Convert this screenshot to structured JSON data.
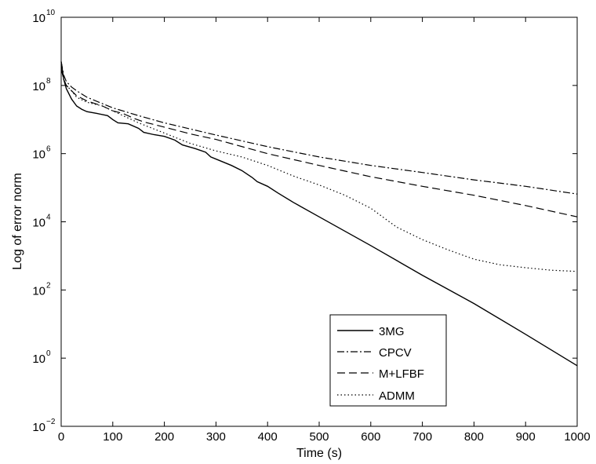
{
  "chart_data": {
    "type": "line",
    "title": "",
    "xlabel": "Time (s)",
    "ylabel": "Log of error norm",
    "xlim": [
      0,
      1000
    ],
    "ylim": [
      0.01,
      10000000000
    ],
    "yscale": "log",
    "grid": false,
    "legend_position": "bottom-right",
    "xticks": [
      "0",
      "100",
      "200",
      "300",
      "400",
      "500",
      "600",
      "700",
      "800",
      "900",
      "1000"
    ],
    "yticks": [
      {
        "base": "10",
        "exp": "−2",
        "value": 0.01
      },
      {
        "base": "10",
        "exp": "0",
        "value": 1
      },
      {
        "base": "10",
        "exp": "2",
        "value": 100
      },
      {
        "base": "10",
        "exp": "4",
        "value": 10000
      },
      {
        "base": "10",
        "exp": "6",
        "value": 1000000
      },
      {
        "base": "10",
        "exp": "8",
        "value": 100000000
      },
      {
        "base": "10",
        "exp": "10",
        "value": 10000000000
      }
    ],
    "series": [
      {
        "name": "3MG",
        "style": "solid",
        "points": [
          [
            0,
            500000000
          ],
          [
            5,
            150000000
          ],
          [
            10,
            80000000
          ],
          [
            20,
            40000000
          ],
          [
            30,
            25000000
          ],
          [
            40,
            20000000
          ],
          [
            50,
            17000000
          ],
          [
            70,
            15000000
          ],
          [
            90,
            13000000
          ],
          [
            100,
            10000000
          ],
          [
            110,
            8000000
          ],
          [
            130,
            7500000
          ],
          [
            150,
            5500000
          ],
          [
            160,
            4200000
          ],
          [
            180,
            3600000
          ],
          [
            200,
            3200000
          ],
          [
            220,
            2500000
          ],
          [
            235,
            1800000
          ],
          [
            260,
            1400000
          ],
          [
            280,
            1100000
          ],
          [
            290,
            800000
          ],
          [
            310,
            600000
          ],
          [
            330,
            450000
          ],
          [
            350,
            320000
          ],
          [
            370,
            200000
          ],
          [
            380,
            150000
          ],
          [
            400,
            110000
          ],
          [
            420,
            70000
          ],
          [
            450,
            37000
          ],
          [
            500,
            14000
          ],
          [
            600,
            2000
          ],
          [
            700,
            270
          ],
          [
            800,
            40
          ],
          [
            900,
            5
          ],
          [
            1000,
            0.6
          ]
        ]
      },
      {
        "name": "CPCV",
        "style": "dashdot",
        "points": [
          [
            0,
            500000000
          ],
          [
            5,
            200000000
          ],
          [
            10,
            130000000
          ],
          [
            20,
            90000000
          ],
          [
            30,
            70000000
          ],
          [
            50,
            45000000
          ],
          [
            100,
            22000000
          ],
          [
            150,
            13000000
          ],
          [
            200,
            8000000
          ],
          [
            300,
            3500000
          ],
          [
            400,
            1600000
          ],
          [
            500,
            800000
          ],
          [
            600,
            450000
          ],
          [
            700,
            280000
          ],
          [
            800,
            170000
          ],
          [
            900,
            110000
          ],
          [
            1000,
            65000
          ]
        ]
      },
      {
        "name": "M+LFBF",
        "style": "dashed",
        "points": [
          [
            0,
            300000000
          ],
          [
            5,
            150000000
          ],
          [
            10,
            100000000
          ],
          [
            20,
            70000000
          ],
          [
            30,
            50000000
          ],
          [
            50,
            35000000
          ],
          [
            80,
            25000000
          ],
          [
            100,
            18000000
          ],
          [
            120,
            15000000
          ],
          [
            140,
            11000000
          ],
          [
            160,
            8500000
          ],
          [
            200,
            6000000
          ],
          [
            250,
            3800000
          ],
          [
            300,
            2600000
          ],
          [
            400,
            1000000
          ],
          [
            500,
            450000
          ],
          [
            600,
            210000
          ],
          [
            700,
            110000
          ],
          [
            800,
            60000
          ],
          [
            900,
            30000
          ],
          [
            1000,
            14000
          ]
        ]
      },
      {
        "name": "ADMM",
        "style": "dotted",
        "points": [
          [
            0,
            400000000
          ],
          [
            5,
            150000000
          ],
          [
            10,
            100000000
          ],
          [
            20,
            70000000
          ],
          [
            30,
            45000000
          ],
          [
            50,
            32000000
          ],
          [
            80,
            25000000
          ],
          [
            100,
            18000000
          ],
          [
            150,
            8000000
          ],
          [
            200,
            4000000
          ],
          [
            250,
            2000000
          ],
          [
            300,
            1200000
          ],
          [
            350,
            800000
          ],
          [
            400,
            450000
          ],
          [
            450,
            220000
          ],
          [
            500,
            120000
          ],
          [
            550,
            60000
          ],
          [
            600,
            25000
          ],
          [
            650,
            7000
          ],
          [
            700,
            3000
          ],
          [
            750,
            1500
          ],
          [
            800,
            800
          ],
          [
            850,
            550
          ],
          [
            900,
            450
          ],
          [
            950,
            380
          ],
          [
            1000,
            350
          ]
        ]
      }
    ]
  }
}
